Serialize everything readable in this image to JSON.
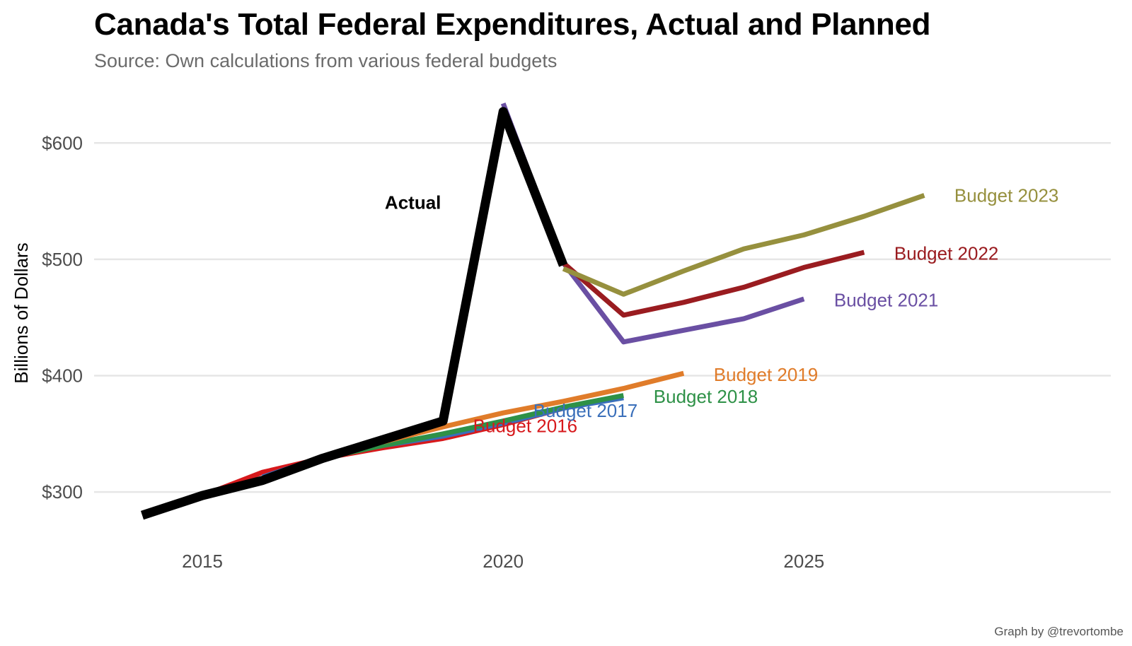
{
  "title": "Canada's Total Federal Expenditures, Actual and Planned",
  "subtitle": "Source: Own calculations from various federal budgets",
  "caption": "Graph by @trevortombe",
  "chart_data": {
    "type": "line",
    "title": "Canada's Total Federal Expenditures, Actual and Planned",
    "subtitle": "Source: Own calculations from various federal budgets",
    "xlabel": "",
    "ylabel": "Billions of Dollars",
    "xlim": [
      2013.2,
      2030.1
    ],
    "ylim": [
      260,
      650
    ],
    "x_ticks": [
      2015,
      2020,
      2025
    ],
    "x_tick_labels": [
      "2015",
      "2020",
      "2025"
    ],
    "y_ticks": [
      300,
      400,
      500,
      600
    ],
    "y_tick_labels": [
      "$300",
      "$400",
      "$500",
      "$600"
    ],
    "grid": "horizontal major gridlines",
    "legend": "none (direct labels)",
    "annotations": [
      {
        "text": "Actual",
        "x": 2018.5,
        "y": 549
      }
    ],
    "series": [
      {
        "name": "Budget 2016",
        "color": "#d7191c",
        "x": [
          2015,
          2016,
          2017,
          2018,
          2019,
          2020,
          2021
        ],
        "y": [
          297,
          317,
          329,
          338,
          346,
          358,
          372
        ]
      },
      {
        "name": "Budget 2017",
        "color": "#3a6fba",
        "x": [
          2016,
          2017,
          2018,
          2019,
          2020,
          2021,
          2022
        ],
        "y": [
          313,
          330,
          340,
          348,
          359,
          372,
          381
        ]
      },
      {
        "name": "Budget 2018",
        "color": "#2e9147",
        "x": [
          2017,
          2018,
          2019,
          2020,
          2021,
          2022
        ],
        "y": [
          329,
          340,
          350,
          361,
          373,
          383
        ]
      },
      {
        "name": "Budget 2019",
        "color": "#e07c2a",
        "x": [
          2018,
          2019,
          2020,
          2021,
          2022,
          2023
        ],
        "y": [
          343,
          356,
          368,
          378,
          389,
          402
        ]
      },
      {
        "name": "Budget 2021",
        "color": "#6a4fa3",
        "x": [
          2020,
          2021,
          2022,
          2023,
          2024,
          2025
        ],
        "y": [
          634,
          497,
          429,
          439,
          449,
          466
        ]
      },
      {
        "name": "Budget 2022",
        "color": "#9a1c20",
        "x": [
          2021,
          2022,
          2023,
          2024,
          2025,
          2026
        ],
        "y": [
          497,
          452,
          463,
          476,
          493,
          506
        ]
      },
      {
        "name": "Budget 2023",
        "color": "#96903e",
        "x": [
          2021,
          2022,
          2023,
          2024,
          2025,
          2026,
          2027
        ],
        "y": [
          492,
          470,
          490,
          509,
          521,
          537,
          555
        ]
      },
      {
        "name": "Actual",
        "color": "#000000",
        "x": [
          2014,
          2015,
          2016,
          2017,
          2018,
          2019,
          2020,
          2021
        ],
        "y": [
          280,
          297,
          310,
          329,
          345,
          361,
          627,
          495
        ]
      }
    ],
    "direct_labels": [
      {
        "name": "Budget 2016",
        "x": 2019.5,
        "y": 357
      },
      {
        "name": "Budget 2017",
        "x": 2020.5,
        "y": 370
      },
      {
        "name": "Budget 2018",
        "x": 2022.5,
        "y": 382
      },
      {
        "name": "Budget 2019",
        "x": 2023.5,
        "y": 401
      },
      {
        "name": "Budget 2021",
        "x": 2025.5,
        "y": 465
      },
      {
        "name": "Budget 2022",
        "x": 2026.5,
        "y": 505
      },
      {
        "name": "Budget 2023",
        "x": 2027.5,
        "y": 555
      }
    ]
  }
}
